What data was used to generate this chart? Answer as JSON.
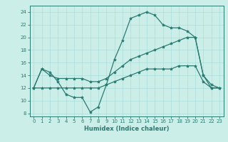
{
  "xlabel": "Humidex (Indice chaleur)",
  "xlim": [
    -0.5,
    23.5
  ],
  "ylim": [
    7.5,
    25
  ],
  "yticks": [
    8,
    10,
    12,
    14,
    16,
    18,
    20,
    22,
    24
  ],
  "xticks": [
    0,
    1,
    2,
    3,
    4,
    5,
    6,
    7,
    8,
    9,
    10,
    11,
    12,
    13,
    14,
    15,
    16,
    17,
    18,
    19,
    20,
    21,
    22,
    23
  ],
  "bg_color": "#cceee8",
  "grid_color": "#aaddda",
  "line_color": "#2a7a72",
  "line1_x": [
    0,
    1,
    2,
    3,
    4,
    5,
    6,
    7,
    8,
    9,
    10,
    11,
    12,
    13,
    14,
    15,
    16,
    17,
    18,
    19,
    20,
    21,
    22,
    23
  ],
  "line1_y": [
    12,
    15,
    14.5,
    13,
    11,
    10.5,
    10.5,
    8.2,
    9,
    12.5,
    16.5,
    19.5,
    23,
    23.5,
    24,
    23.5,
    22,
    21.5,
    21.5,
    21,
    20,
    14,
    12,
    12
  ],
  "line2_x": [
    0,
    1,
    2,
    3,
    4,
    5,
    6,
    7,
    8,
    9,
    10,
    11,
    12,
    13,
    14,
    15,
    16,
    17,
    18,
    19,
    20,
    21,
    22,
    23
  ],
  "line2_y": [
    12,
    15,
    14,
    13.5,
    13.5,
    13.5,
    13.5,
    13,
    13,
    13.5,
    14.5,
    15.5,
    16.5,
    17,
    17.5,
    18,
    18.5,
    19,
    19.5,
    20,
    20,
    14,
    12.5,
    12
  ],
  "line3_x": [
    0,
    1,
    2,
    3,
    4,
    5,
    6,
    7,
    8,
    9,
    10,
    11,
    12,
    13,
    14,
    15,
    16,
    17,
    18,
    19,
    20,
    21,
    22,
    23
  ],
  "line3_y": [
    12,
    12,
    12,
    12,
    12,
    12,
    12,
    12,
    12,
    12.5,
    13,
    13.5,
    14,
    14.5,
    15,
    15,
    15,
    15,
    15.5,
    15.5,
    15.5,
    13,
    12,
    12
  ]
}
